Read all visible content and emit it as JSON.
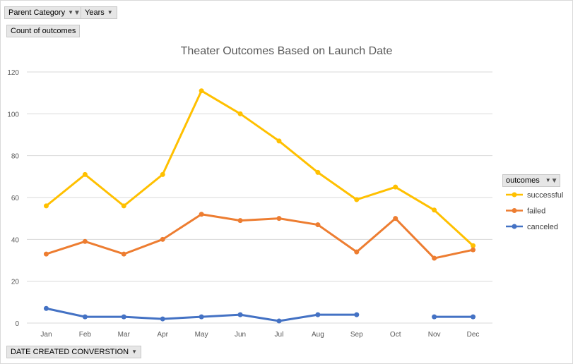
{
  "filters": {
    "parent_category": "Parent Category",
    "years": "Years"
  },
  "value_field": "Count of outcomes",
  "axis_field": "DATE CREATED CONVERSTION",
  "icons": [
    "chevron-down-icon",
    "filter-icon"
  ],
  "chart_data": {
    "type": "line",
    "title": "Theater Outcomes Based on Launch Date",
    "xlabel": "",
    "ylabel": "",
    "categories": [
      "Jan",
      "Feb",
      "Mar",
      "Apr",
      "May",
      "Jun",
      "Jul",
      "Aug",
      "Sep",
      "Oct",
      "Nov",
      "Dec"
    ],
    "ylim": [
      0,
      120
    ],
    "yticks": [
      0,
      20,
      40,
      60,
      80,
      100,
      120
    ],
    "grid": true,
    "legend_title": "outcomes",
    "legend_position": "right",
    "series": [
      {
        "name": "successful",
        "color": "#FFC000",
        "values": [
          56,
          71,
          56,
          71,
          111,
          100,
          87,
          72,
          59,
          65,
          54,
          37
        ]
      },
      {
        "name": "failed",
        "color": "#ED7D31",
        "values": [
          33,
          39,
          33,
          40,
          52,
          49,
          50,
          47,
          34,
          50,
          31,
          35
        ]
      },
      {
        "name": "canceled",
        "color": "#4472C4",
        "values": [
          7,
          3,
          3,
          2,
          3,
          4,
          1,
          4,
          4,
          null,
          3,
          3
        ]
      }
    ]
  }
}
